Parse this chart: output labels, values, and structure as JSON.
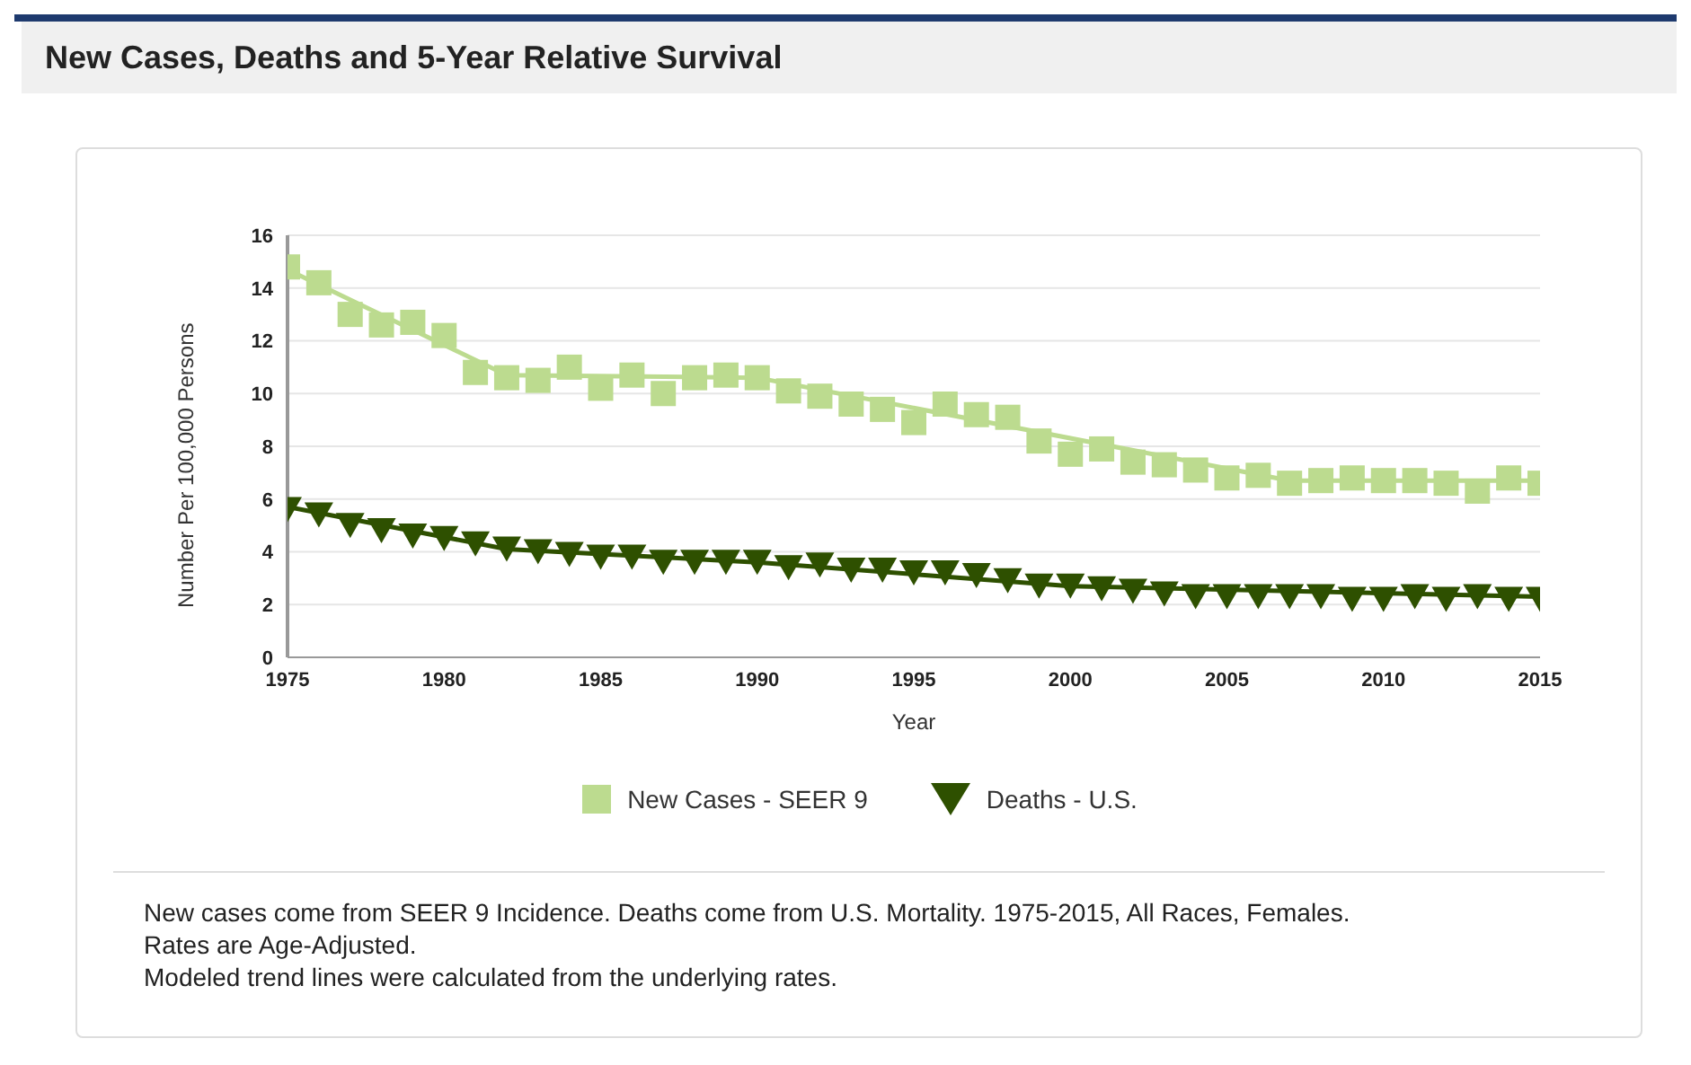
{
  "chart_data": {
    "type": "scatter",
    "title": "New Cases, Deaths and 5-Year Relative Survival",
    "xlabel": "Year",
    "ylabel": "Number Per 100,000 Persons",
    "x": [
      1975,
      1976,
      1977,
      1978,
      1979,
      1980,
      1981,
      1982,
      1983,
      1984,
      1985,
      1986,
      1987,
      1988,
      1989,
      1990,
      1991,
      1992,
      1993,
      1994,
      1995,
      1996,
      1997,
      1998,
      1999,
      2000,
      2001,
      2002,
      2003,
      2004,
      2005,
      2006,
      2007,
      2008,
      2009,
      2010,
      2011,
      2012,
      2013,
      2014,
      2015
    ],
    "series": [
      {
        "name": "New Cases - SEER 9",
        "marker": "square",
        "color": "#bcdb8f",
        "values": [
          14.8,
          14.2,
          13.0,
          12.6,
          12.7,
          12.2,
          10.8,
          10.6,
          10.5,
          11.0,
          10.2,
          10.7,
          10.0,
          10.6,
          10.7,
          10.6,
          10.1,
          9.9,
          9.6,
          9.4,
          8.9,
          9.6,
          9.2,
          9.1,
          8.2,
          7.7,
          7.9,
          7.4,
          7.3,
          7.1,
          6.8,
          6.9,
          6.6,
          6.7,
          6.8,
          6.7,
          6.7,
          6.6,
          6.3,
          6.8,
          6.6
        ]
      },
      {
        "name": "Deaths - U.S.",
        "marker": "triangle",
        "color": "#2e5000",
        "values": [
          5.6,
          5.4,
          5.0,
          4.8,
          4.6,
          4.5,
          4.3,
          4.1,
          4.0,
          3.9,
          3.8,
          3.8,
          3.6,
          3.6,
          3.6,
          3.6,
          3.4,
          3.5,
          3.3,
          3.3,
          3.2,
          3.2,
          3.1,
          2.9,
          2.7,
          2.7,
          2.6,
          2.5,
          2.4,
          2.3,
          2.3,
          2.3,
          2.3,
          2.3,
          2.2,
          2.2,
          2.3,
          2.2,
          2.3,
          2.2,
          2.2
        ]
      },
      {
        "type": "line",
        "marker": "none",
        "color": "#bcdb8f",
        "x": [
          1975,
          1982,
          1990,
          2007,
          2015
        ],
        "values": [
          14.7,
          10.7,
          10.6,
          6.7,
          6.7
        ]
      },
      {
        "type": "line",
        "marker": "none",
        "color": "#2e5000",
        "x": [
          1975,
          1982,
          1990,
          2000,
          2015
        ],
        "values": [
          5.7,
          4.1,
          3.6,
          2.7,
          2.3
        ]
      }
    ],
    "xlim": [
      1975,
      2015
    ],
    "xticks": [
      1975,
      1980,
      1985,
      1990,
      1995,
      2000,
      2005,
      2010,
      2015
    ],
    "ylim": [
      0,
      16
    ],
    "yticks": [
      0,
      2,
      4,
      6,
      8,
      10,
      12,
      14,
      16
    ],
    "grid": "y",
    "legend": "bottom",
    "annotations": [
      "New cases come from SEER 9 Incidence. Deaths come from U.S. Mortality. 1975-2015, All Races, Females.",
      "Rates are Age-Adjusted.",
      "Modeled trend lines were calculated from the underlying rates."
    ]
  }
}
